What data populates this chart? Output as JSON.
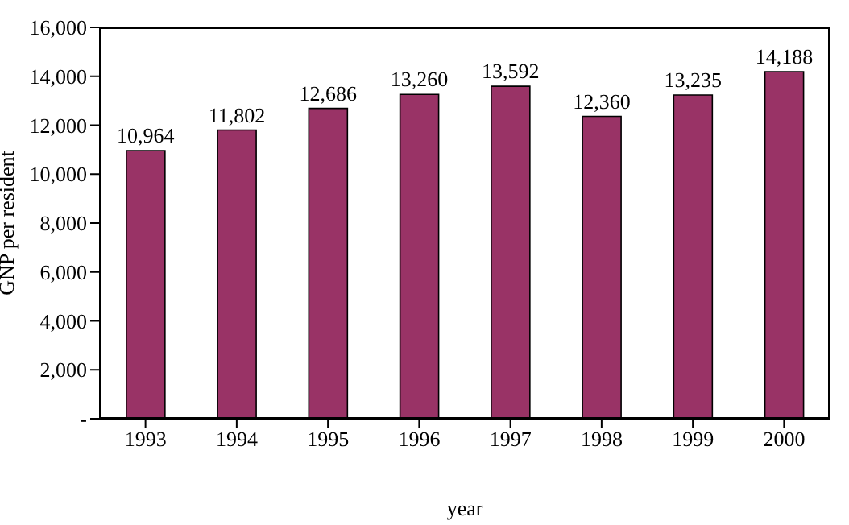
{
  "chart_data": {
    "type": "bar",
    "xlabel": "year",
    "ylabel": "GNP per resident",
    "categories": [
      "1993",
      "1994",
      "1995",
      "1996",
      "1997",
      "1998",
      "1999",
      "2000"
    ],
    "values": [
      10964,
      11802,
      12686,
      13260,
      13592,
      12360,
      13235,
      14188
    ],
    "value_labels": [
      "10,964",
      "11,802",
      "12,686",
      "13,260",
      "13,592",
      "12,360",
      "13,235",
      "14,188"
    ],
    "color": "#993366",
    "ylim": [
      0,
      16000
    ],
    "yticks": [
      {
        "value": 0,
        "label": "-"
      },
      {
        "value": 2000,
        "label": "2,000"
      },
      {
        "value": 4000,
        "label": "4,000"
      },
      {
        "value": 6000,
        "label": "6,000"
      },
      {
        "value": 8000,
        "label": "8,000"
      },
      {
        "value": 10000,
        "label": "10,000"
      },
      {
        "value": 12000,
        "label": "12,000"
      },
      {
        "value": 14000,
        "label": "14,000"
      },
      {
        "value": 16000,
        "label": "16,000"
      }
    ],
    "grid": false,
    "legend": false
  }
}
